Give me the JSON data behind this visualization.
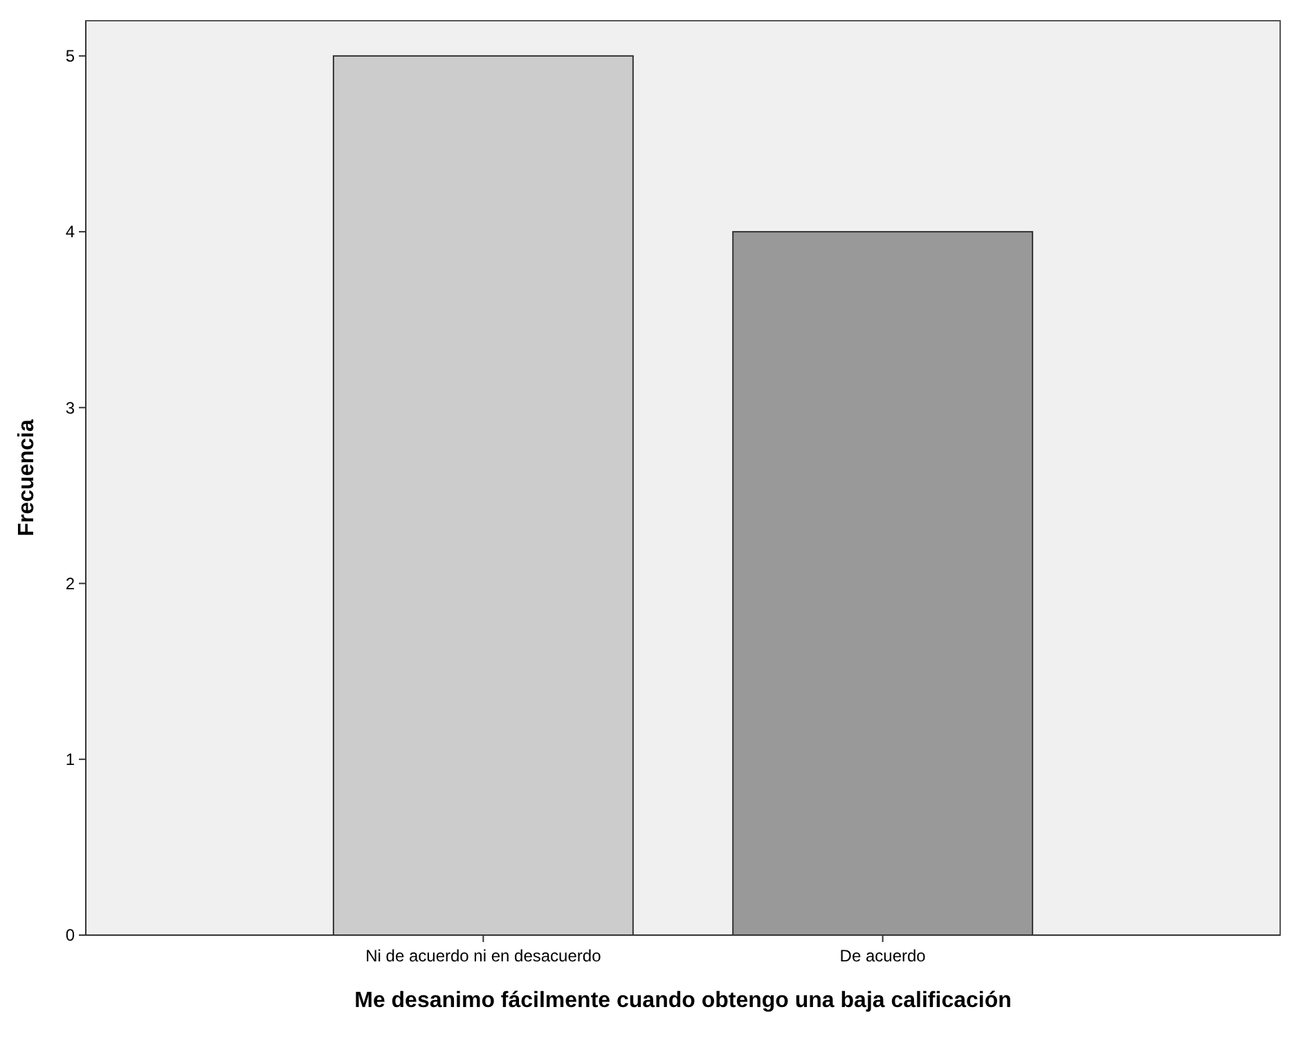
{
  "chart_data": {
    "type": "bar",
    "xlabel": "Me desanimo fácilmente cuando obtengo una baja calificación",
    "ylabel": "Frecuencia",
    "categories": [
      "Ni de acuerdo ni en desacuerdo",
      "De acuerdo"
    ],
    "values": [
      5,
      4
    ],
    "colors": [
      "#cccccc",
      "#999999"
    ],
    "ylim": [
      0,
      5.2
    ],
    "yticks": [
      0,
      1,
      2,
      3,
      4,
      5
    ],
    "grid": false
  }
}
